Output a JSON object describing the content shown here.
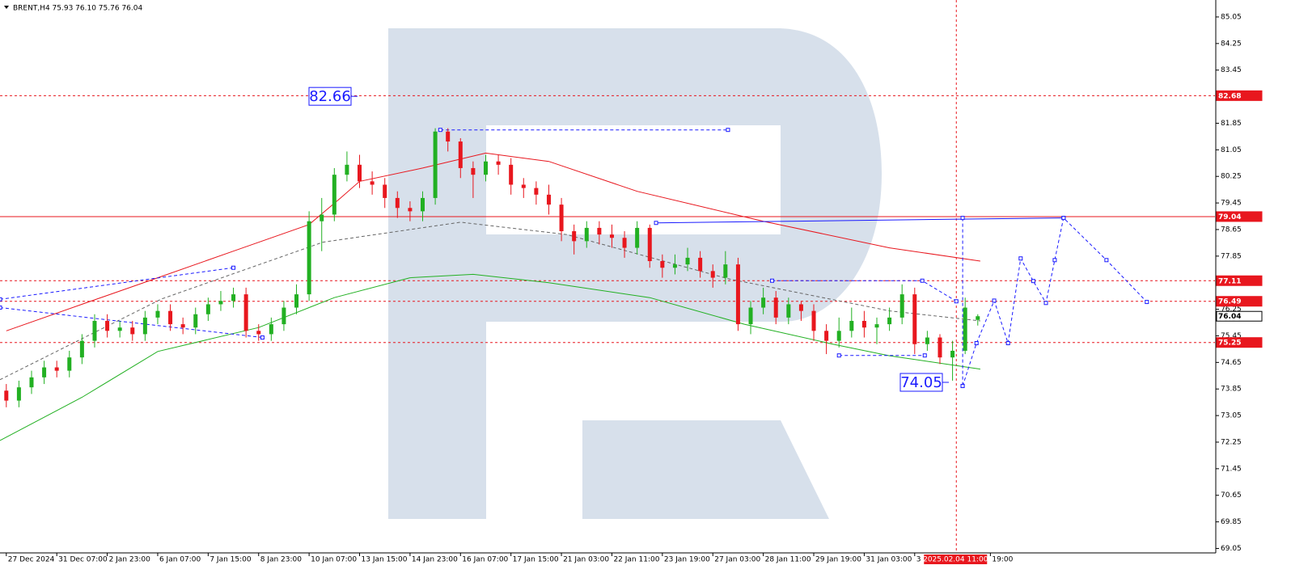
{
  "chart_data": {
    "type": "candlestick",
    "title": "BRENT,H4  75.93 76.10 75.76 76.04",
    "up_color": "#22b022",
    "down_color": "#e8171e",
    "x": [
      0,
      1,
      2,
      3,
      4,
      5,
      6,
      7,
      8,
      9,
      10,
      11,
      12,
      13,
      14,
      15,
      16,
      17,
      18,
      19,
      20,
      21,
      22,
      23,
      24,
      25,
      26,
      27,
      28,
      29,
      30,
      31,
      32,
      33,
      34,
      35,
      36,
      37,
      38,
      39,
      40,
      41,
      42,
      43,
      44,
      45,
      46,
      47,
      48,
      49,
      50,
      51,
      52,
      53,
      54,
      55,
      56,
      57,
      58,
      59,
      60,
      61,
      62,
      63,
      64,
      65,
      66,
      67,
      68,
      69,
      70,
      71,
      72,
      73,
      74,
      75,
      76,
      77
    ],
    "open": [
      73.8,
      73.5,
      73.9,
      74.2,
      74.5,
      74.4,
      74.8,
      75.3,
      75.9,
      75.6,
      75.7,
      75.5,
      76.0,
      76.2,
      75.8,
      75.7,
      76.1,
      76.4,
      76.5,
      76.7,
      75.6,
      75.5,
      75.8,
      76.3,
      76.7,
      78.9,
      79.1,
      80.3,
      80.6,
      80.1,
      80.0,
      79.6,
      79.3,
      79.2,
      79.6,
      81.6,
      81.3,
      80.5,
      80.3,
      80.7,
      80.6,
      80.0,
      79.9,
      79.7,
      79.4,
      78.6,
      78.3,
      78.7,
      78.5,
      78.4,
      78.1,
      78.7,
      77.7,
      77.5,
      77.6,
      77.8,
      77.4,
      77.2,
      77.6,
      75.8,
      76.3,
      76.6,
      76.0,
      76.4,
      76.2,
      75.6,
      75.3,
      75.6,
      75.9,
      75.7,
      75.8,
      76.0,
      76.7,
      75.2,
      75.4,
      74.8,
      75.0,
      75.93
    ],
    "high": [
      74.0,
      74.1,
      74.4,
      74.7,
      74.7,
      75.0,
      75.5,
      76.1,
      76.1,
      75.9,
      75.9,
      76.2,
      76.4,
      76.4,
      76.0,
      76.3,
      76.6,
      76.8,
      76.9,
      76.9,
      75.8,
      76.0,
      76.5,
      77.0,
      79.2,
      79.6,
      80.5,
      81.0,
      80.9,
      80.4,
      80.2,
      79.8,
      79.5,
      79.8,
      81.7,
      81.7,
      81.4,
      80.7,
      80.9,
      80.9,
      80.8,
      80.2,
      80.1,
      80.0,
      79.6,
      78.8,
      78.9,
      78.9,
      78.8,
      78.6,
      78.9,
      78.8,
      77.9,
      77.9,
      78.1,
      78.0,
      77.6,
      78.0,
      77.8,
      76.5,
      76.9,
      76.8,
      76.6,
      76.5,
      76.4,
      75.8,
      76.0,
      76.3,
      76.2,
      76.0,
      76.3,
      77.0,
      76.9,
      75.6,
      75.5,
      75.3,
      76.6,
      76.1
    ],
    "low": [
      73.3,
      73.3,
      73.7,
      74.0,
      74.2,
      74.2,
      74.6,
      75.1,
      75.4,
      75.4,
      75.3,
      75.3,
      75.8,
      75.6,
      75.5,
      75.5,
      75.9,
      76.2,
      76.3,
      75.4,
      75.3,
      75.3,
      75.6,
      76.1,
      76.5,
      78.0,
      78.9,
      80.1,
      79.9,
      79.7,
      79.3,
      79.0,
      78.9,
      78.9,
      79.4,
      81.0,
      80.2,
      79.6,
      80.1,
      80.3,
      79.7,
      79.6,
      79.4,
      79.1,
      78.3,
      77.9,
      78.1,
      78.2,
      78.1,
      77.8,
      77.9,
      77.5,
      77.2,
      77.3,
      77.4,
      77.2,
      76.9,
      77.0,
      75.6,
      75.5,
      76.1,
      75.8,
      75.8,
      75.9,
      75.3,
      74.9,
      75.1,
      75.4,
      75.4,
      75.2,
      75.6,
      75.8,
      74.9,
      75.0,
      74.6,
      74.1,
      74.9,
      75.76
    ],
    "close": [
      73.5,
      73.9,
      74.2,
      74.5,
      74.4,
      74.8,
      75.3,
      75.9,
      75.6,
      75.7,
      75.5,
      76.0,
      76.2,
      75.8,
      75.7,
      76.1,
      76.4,
      76.5,
      76.7,
      75.6,
      75.5,
      75.8,
      76.3,
      76.7,
      78.9,
      79.1,
      80.3,
      80.6,
      80.1,
      80.0,
      79.6,
      79.3,
      79.2,
      79.6,
      81.6,
      81.3,
      80.5,
      80.3,
      80.7,
      80.6,
      80.0,
      79.9,
      79.7,
      79.4,
      78.6,
      78.3,
      78.7,
      78.5,
      78.4,
      78.1,
      78.7,
      77.7,
      77.5,
      77.6,
      77.8,
      77.4,
      77.2,
      77.6,
      75.8,
      76.3,
      76.6,
      76.0,
      76.4,
      76.2,
      75.6,
      75.3,
      75.6,
      75.9,
      75.7,
      75.8,
      76.0,
      76.7,
      75.2,
      75.4,
      74.8,
      75.0,
      76.3,
      76.04
    ],
    "xlim": [
      -0.5,
      95.8
    ],
    "ylim": [
      68.94,
      85.56
    ],
    "yticks": [
      85.05,
      84.25,
      83.45,
      81.85,
      81.05,
      80.25,
      79.45,
      78.65,
      77.85,
      76.25,
      75.45,
      74.65,
      73.85,
      73.05,
      72.25,
      71.45,
      70.65,
      69.85,
      69.05
    ],
    "xticks": [
      {
        "value": 0,
        "label": "27 Dec 2024"
      },
      {
        "value": 4,
        "label": "31 Dec 07:00"
      },
      {
        "value": 8,
        "label": "2 Jan 23:00"
      },
      {
        "value": 12,
        "label": "6 Jan 07:00"
      },
      {
        "value": 16,
        "label": "7 Jan 15:00"
      },
      {
        "value": 20,
        "label": "8 Jan 23:00"
      },
      {
        "value": 24,
        "label": "10 Jan 07:00"
      },
      {
        "value": 28,
        "label": "13 Jan 15:00"
      },
      {
        "value": 32,
        "label": "14 Jan 23:00"
      },
      {
        "value": 36,
        "label": "16 Jan 07:00"
      },
      {
        "value": 40,
        "label": "17 Jan 15:00"
      },
      {
        "value": 44,
        "label": "21 Jan 03:00"
      },
      {
        "value": 48,
        "label": "22 Jan 11:00"
      },
      {
        "value": 52,
        "label": "23 Jan 19:00"
      },
      {
        "value": 56,
        "label": "27 Jan 03:00"
      },
      {
        "value": 60,
        "label": "28 Jan 11:00"
      },
      {
        "value": 64,
        "label": "29 Jan 19:00"
      },
      {
        "value": 68,
        "label": "31 Jan 03:00"
      },
      {
        "value": 72,
        "label": "3"
      },
      {
        "value": 78,
        "label": "19:00"
      }
    ],
    "crosshair": {
      "value": 75.3,
      "label": "2025.02.04 11:00"
    },
    "levels": [
      {
        "value": 82.68,
        "color": "#e8171e",
        "style": "dash"
      },
      {
        "value": 79.04,
        "color": "#e8171e",
        "style": "solid"
      },
      {
        "value": 77.11,
        "color": "#e8171e",
        "style": "dash"
      },
      {
        "value": 76.49,
        "color": "#e8171e",
        "style": "dash"
      },
      {
        "value": 76.04,
        "color": "#000000",
        "style": "none"
      },
      {
        "value": 75.25,
        "color": "#e8171e",
        "style": "dash"
      }
    ],
    "annotations": [
      {
        "value": 82.66
      },
      {
        "value": 74.05
      }
    ],
    "lines": [
      {
        "color": "#e8171e",
        "style": "solid",
        "x": [
          0,
          6,
          12,
          18,
          24,
          26.5,
          28,
          33,
          38,
          43,
          50,
          60,
          70,
          77.2
        ],
        "values": [
          75.6,
          76.4,
          77.2,
          78.0,
          78.8,
          79.6,
          80.1,
          80.5,
          80.95,
          80.7,
          79.8,
          78.9,
          78.1,
          77.7
        ]
      },
      {
        "color": "#22b022",
        "style": "solid",
        "x": [
          -0.5,
          6,
          12,
          20,
          26,
          32,
          37,
          43,
          51,
          58.5,
          65.5,
          70,
          77.2
        ],
        "values": [
          72.3,
          73.6,
          74.98,
          75.7,
          76.6,
          77.2,
          77.3,
          77.05,
          76.6,
          75.8,
          75.2,
          74.85,
          74.45
        ]
      },
      {
        "color": "#666666",
        "style": "dash",
        "x": [
          -0.5,
          12.3,
          25.1,
          36,
          44.4,
          57.2,
          70,
          77.2
        ],
        "values": [
          74.13,
          76.56,
          78.27,
          78.87,
          78.5,
          77.17,
          76.2,
          75.9
        ]
      },
      {
        "color": "#1a1aff",
        "style": "dash",
        "x": [
          -0.5,
          18
        ],
        "values": [
          76.55,
          77.5
        ]
      },
      {
        "color": "#1a1aff",
        "style": "dash",
        "x": [
          -0.5,
          20.3
        ],
        "values": [
          76.3,
          75.4
        ]
      },
      {
        "color": "#1a1aff",
        "style": "dash",
        "x": [
          34.4,
          57.2
        ],
        "values": [
          81.65,
          81.65
        ]
      },
      {
        "color": "#1a1aff",
        "style": "dash",
        "x": [
          60.7,
          72.6,
          75.3
        ],
        "values": [
          77.11,
          77.11,
          76.49
        ]
      },
      {
        "color": "#1a1aff",
        "style": "dash",
        "x": [
          66,
          72.8
        ],
        "values": [
          74.86,
          74.86
        ]
      },
      {
        "color": "#1a1aff",
        "style": "solid",
        "x": [
          51.5,
          83.8
        ],
        "values": [
          78.85,
          79.0
        ]
      },
      {
        "color": "#1a1aff",
        "style": "dash",
        "x": [
          75.8,
          75.8
        ],
        "values": [
          79.0,
          73.94
        ]
      },
      {
        "color": "#1a1aff",
        "style": "dash",
        "x": [
          75.8,
          76.9,
          78.3,
          79.4,
          80.4,
          81.4,
          82.4,
          83.1,
          83.8,
          87.2,
          90.4
        ],
        "values": [
          73.94,
          75.23,
          76.51,
          75.23,
          77.78,
          77.1,
          76.44,
          77.73,
          79.0,
          77.73,
          76.47
        ]
      }
    ]
  }
}
